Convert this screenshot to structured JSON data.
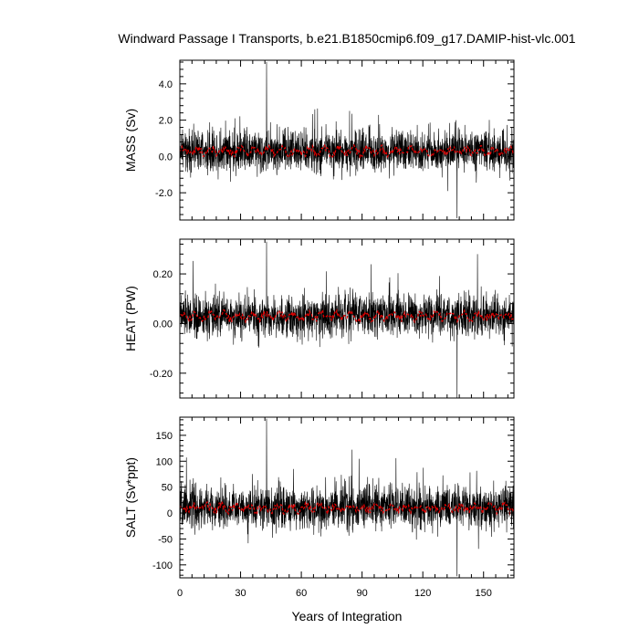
{
  "title": "Windward Passage I Transports, b.e21.B1850cmip6.f09_g17.DAMIP-hist-vlc.001",
  "colors": {
    "monthly": "#000000",
    "annual": "#dd0000",
    "frame": "#000000"
  },
  "chart_data": [
    {
      "type": "line",
      "ylabel": "MASS (Sv)",
      "xlim": [
        0,
        165
      ],
      "ylim": [
        -3.5,
        5.3
      ],
      "yticks": [
        -2.0,
        0.0,
        2.0,
        4.0
      ],
      "ytick_labels": [
        "-2.0",
        "0.0",
        "2.0",
        "4.0"
      ],
      "series": [
        {
          "style": "monthly",
          "mean": 0.3,
          "spread": 0.9,
          "max": 5.2,
          "min": -3.4
        },
        {
          "style": "annual",
          "mean": 0.3,
          "spread": 0.25
        }
      ]
    },
    {
      "type": "line",
      "ylabel": "HEAT (PW)",
      "xlim": [
        0,
        165
      ],
      "ylim": [
        -0.3,
        0.34
      ],
      "yticks": [
        -0.2,
        0.0,
        0.2
      ],
      "ytick_labels": [
        "-0.20",
        "0.00",
        "0.20"
      ],
      "series": [
        {
          "style": "monthly",
          "mean": 0.03,
          "spread": 0.065,
          "max": 0.33,
          "min": -0.3
        },
        {
          "style": "annual",
          "mean": 0.03,
          "spread": 0.018
        }
      ]
    },
    {
      "type": "line",
      "ylabel": "SALT (Sv*ppt)",
      "xlim": [
        0,
        165
      ],
      "ylim": [
        -125,
        185
      ],
      "yticks": [
        -100,
        -50,
        0,
        50,
        100,
        150
      ],
      "ytick_labels": [
        "-100",
        "-50",
        "0",
        "50",
        "100",
        "150"
      ],
      "xlabel": "Years of Integration",
      "xticks": [
        0,
        30,
        60,
        90,
        120,
        150
      ],
      "xtick_labels": [
        "0",
        "30",
        "60",
        "90",
        "120",
        "150"
      ],
      "series": [
        {
          "style": "monthly",
          "mean": 10,
          "spread": 32,
          "max": 182,
          "min": -122
        },
        {
          "style": "annual",
          "mean": 10,
          "spread": 9
        }
      ]
    }
  ]
}
